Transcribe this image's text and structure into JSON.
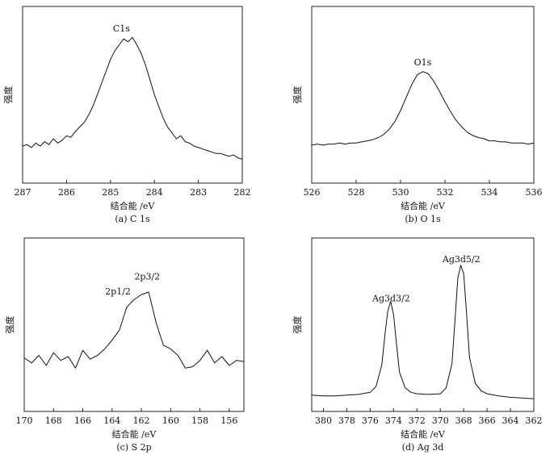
{
  "chart_data": [
    {
      "id": "a",
      "type": "line",
      "caption": "(a) C 1s",
      "xlabel": "结合能 /eV",
      "ylabel": "强度",
      "xlim": [
        287,
        282
      ],
      "ylim": [
        0,
        100
      ],
      "xticks": [
        287,
        286,
        285,
        284,
        283,
        282
      ],
      "annotations": [
        {
          "text": "C1s",
          "x": 284.75,
          "y": 95
        }
      ],
      "series": [
        {
          "name": "C 1s",
          "x": [
            287.0,
            286.9,
            286.8,
            286.7,
            286.6,
            286.5,
            286.4,
            286.3,
            286.2,
            286.1,
            286.0,
            285.9,
            285.8,
            285.7,
            285.6,
            285.5,
            285.4,
            285.3,
            285.2,
            285.1,
            285.0,
            284.9,
            284.8,
            284.7,
            284.6,
            284.5,
            284.4,
            284.3,
            284.2,
            284.1,
            284.0,
            283.9,
            283.8,
            283.7,
            283.6,
            283.5,
            283.4,
            283.3,
            283.2,
            283.1,
            283.0,
            282.9,
            282.8,
            282.7,
            282.6,
            282.5,
            282.4,
            282.3,
            282.2,
            282.1,
            282.0
          ],
          "y": [
            17,
            18,
            16,
            19,
            17,
            20,
            18,
            22,
            19,
            21,
            24,
            23,
            27,
            30,
            33,
            38,
            44,
            52,
            60,
            68,
            76,
            82,
            86,
            90,
            88,
            91,
            86,
            80,
            72,
            62,
            52,
            44,
            36,
            30,
            26,
            22,
            24,
            20,
            19,
            17,
            16,
            15,
            14,
            13,
            12,
            12,
            11,
            10,
            11,
            9,
            8
          ]
        }
      ]
    },
    {
      "id": "b",
      "type": "line",
      "caption": "(b) O 1s",
      "xlabel": "结合能 /eV",
      "ylabel": "强度",
      "xlim": [
        526,
        536
      ],
      "ylim": [
        0,
        100
      ],
      "xticks": [
        526,
        528,
        530,
        532,
        534,
        536
      ],
      "annotations": [
        {
          "text": "O1s",
          "x": 531.0,
          "y": 86
        }
      ],
      "series": [
        {
          "name": "O 1s",
          "x": [
            526.0,
            526.25,
            526.5,
            526.75,
            527.0,
            527.25,
            527.5,
            527.75,
            528.0,
            528.25,
            528.5,
            528.75,
            529.0,
            529.25,
            529.5,
            529.75,
            530.0,
            530.25,
            530.5,
            530.75,
            531.0,
            531.25,
            531.5,
            531.75,
            532.0,
            532.25,
            532.5,
            532.75,
            533.0,
            533.25,
            533.5,
            533.75,
            534.0,
            534.25,
            534.5,
            534.75,
            535.0,
            535.25,
            535.5,
            535.75,
            536.0
          ],
          "y": [
            12,
            13,
            12,
            13,
            13,
            14,
            13,
            14,
            14,
            15,
            16,
            17,
            19,
            22,
            27,
            34,
            44,
            56,
            68,
            77,
            80,
            78,
            71,
            62,
            52,
            43,
            35,
            29,
            24,
            21,
            19,
            18,
            16,
            16,
            15,
            15,
            14,
            14,
            14,
            13,
            14
          ]
        }
      ]
    },
    {
      "id": "c",
      "type": "line",
      "caption": "(c) S 2p",
      "xlabel": "结合能 /eV",
      "ylabel": "强度",
      "xlim": [
        170,
        155
      ],
      "ylim": [
        0,
        100
      ],
      "xticks": [
        170,
        168,
        166,
        164,
        162,
        160,
        158,
        156
      ],
      "annotations": [
        {
          "text": "2p1/2",
          "x": 163.6,
          "y": 70
        },
        {
          "text": "2p3/2",
          "x": 161.6,
          "y": 82
        }
      ],
      "series": [
        {
          "name": "S 2p",
          "x": [
            170.0,
            169.5,
            169.0,
            168.5,
            168.0,
            167.5,
            167.0,
            166.5,
            166.0,
            165.5,
            165.0,
            164.5,
            164.0,
            163.5,
            163.0,
            162.5,
            162.0,
            161.5,
            161.0,
            160.5,
            160.0,
            159.5,
            159.0,
            158.5,
            158.0,
            157.5,
            157.0,
            156.5,
            156.0,
            155.5,
            155.0
          ],
          "y": [
            20,
            16,
            22,
            14,
            24,
            18,
            21,
            12,
            26,
            19,
            22,
            27,
            34,
            42,
            60,
            66,
            70,
            72,
            48,
            30,
            27,
            22,
            12,
            13,
            18,
            26,
            16,
            21,
            14,
            18,
            17
          ]
        }
      ]
    },
    {
      "id": "d",
      "type": "line",
      "caption": "(d) Ag 3d",
      "xlabel": "结合能 /eV",
      "ylabel": "强度",
      "xlim": [
        381,
        362
      ],
      "ylim": [
        0,
        100
      ],
      "xticks": [
        380,
        378,
        376,
        374,
        372,
        370,
        368,
        366,
        364,
        362
      ],
      "annotations": [
        {
          "text": "Ag3d3/2",
          "x": 374.2,
          "y": 69
        },
        {
          "text": "Ag3d5/2",
          "x": 368.2,
          "y": 96
        }
      ],
      "series": [
        {
          "name": "Ag 3d",
          "x": [
            381.0,
            380.0,
            379.0,
            378.0,
            377.0,
            376.0,
            375.5,
            375.0,
            374.75,
            374.5,
            374.25,
            374.0,
            373.75,
            373.5,
            373.0,
            372.5,
            372.0,
            371.0,
            370.0,
            369.5,
            369.0,
            368.75,
            368.5,
            368.25,
            368.0,
            367.75,
            367.5,
            367.0,
            366.5,
            366.0,
            365.0,
            364.0,
            363.0,
            362.0
          ],
          "y": [
            4,
            3.5,
            3.5,
            4,
            4.5,
            6,
            10,
            25,
            45,
            62,
            69,
            60,
            40,
            20,
            9,
            6,
            5,
            4.5,
            5,
            9,
            26,
            55,
            85,
            94,
            88,
            60,
            30,
            12,
            7,
            5,
            3.5,
            2.5,
            2,
            1.5
          ]
        }
      ]
    }
  ]
}
